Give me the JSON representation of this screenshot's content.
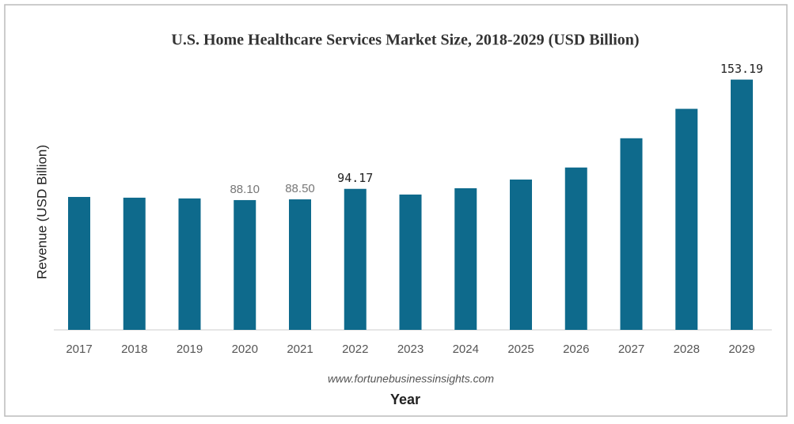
{
  "chart_data": {
    "type": "bar",
    "title": "U.S. Home Healthcare Services Market Size, 2018-2029 (USD Billion)",
    "y_label": "Revenue (USD Billion)",
    "x_label": "Year",
    "source": "www.fortunebusinessinsights.com",
    "categories": [
      "2017",
      "2018",
      "2019",
      "2020",
      "2021",
      "2022",
      "2023",
      "2024",
      "2025",
      "2026",
      "2027",
      "2028",
      "2029"
    ],
    "values": [
      89.8,
      89.4,
      89.0,
      88.1,
      88.5,
      94.17,
      91.1,
      94.5,
      99.2,
      105.7,
      121.5,
      137.4,
      153.19
    ],
    "value_labels": [
      null,
      null,
      null,
      "88.10",
      "88.50",
      "94.17",
      null,
      null,
      null,
      null,
      null,
      null,
      "153.19"
    ],
    "color": "#0e6a8c",
    "ylim": [
      18,
      162
    ]
  }
}
